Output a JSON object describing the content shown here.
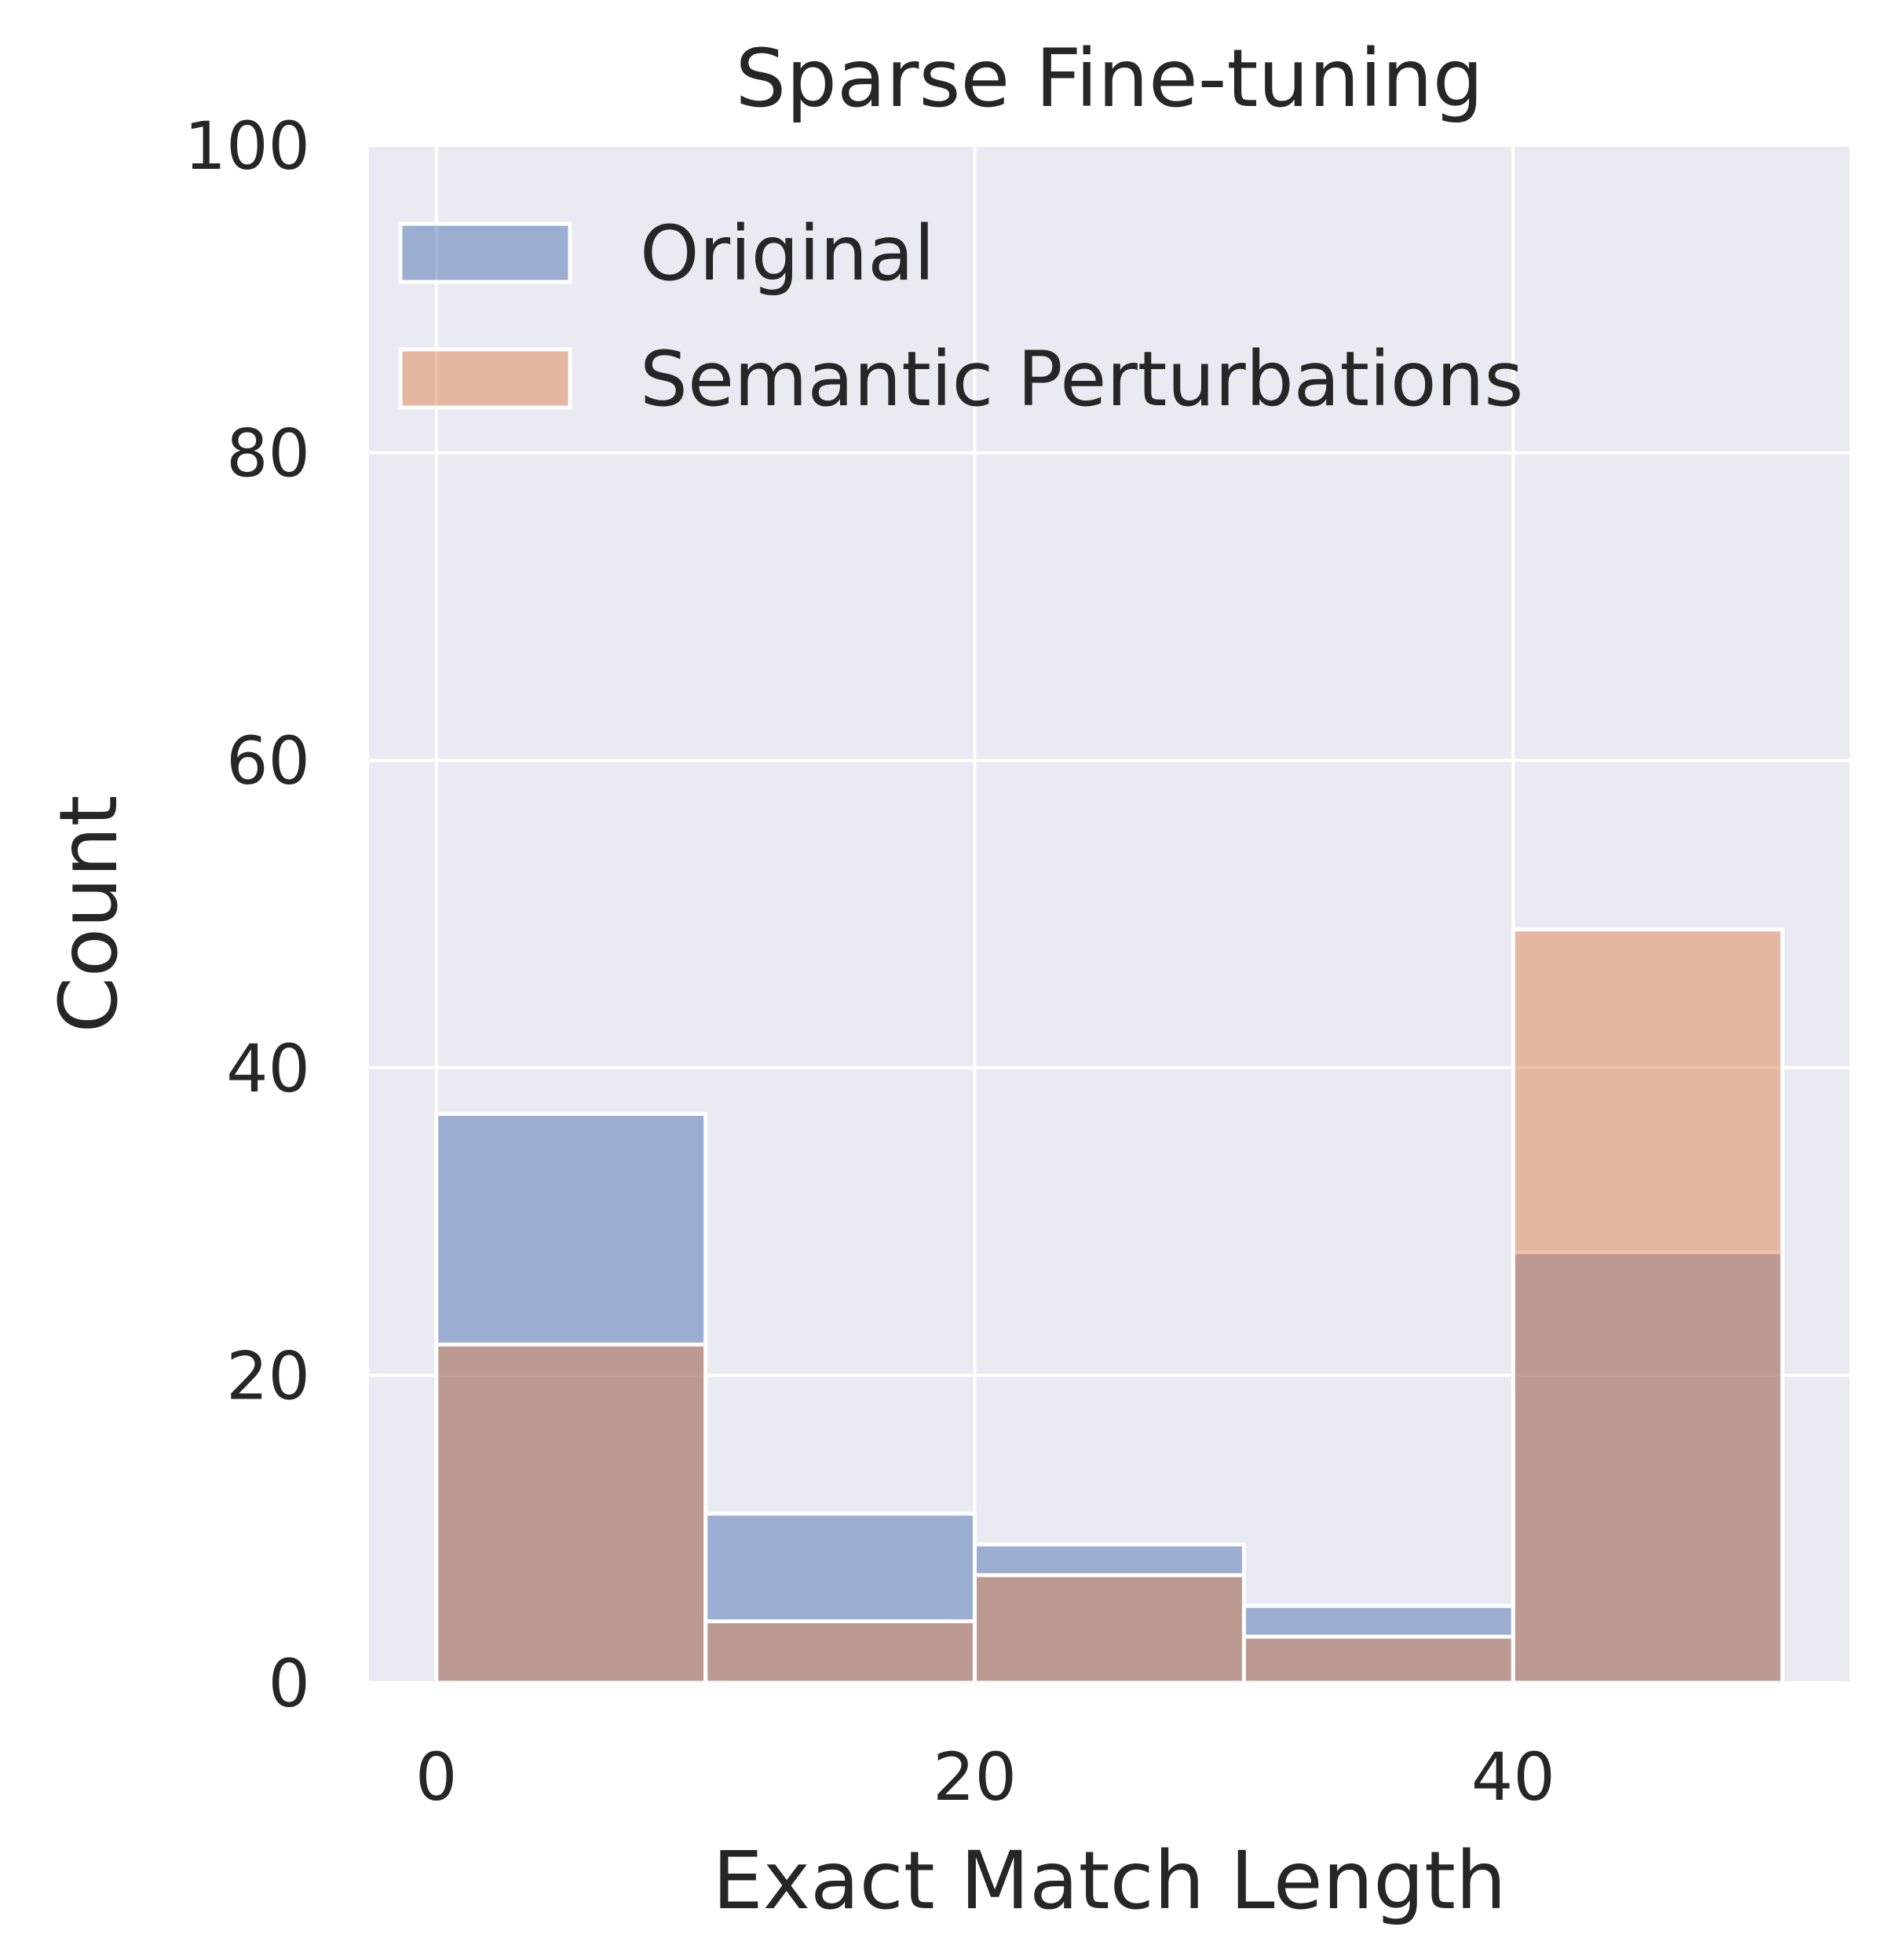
{
  "chart_data": {
    "type": "bar",
    "title": "Sparse Fine-tuning",
    "xlabel": "Exact Match Length",
    "ylabel": "Count",
    "xlim": [
      -2.5,
      52.5
    ],
    "ylim": [
      0,
      100
    ],
    "xticks": [
      0,
      20,
      40
    ],
    "yticks": [
      0,
      20,
      40,
      60,
      80,
      100
    ],
    "bin_edges": [
      0,
      10,
      20,
      30,
      40,
      50
    ],
    "grid": true,
    "legend_position": "top-left",
    "series": [
      {
        "name": "Original",
        "color": "#4C72B0",
        "alpha": 0.5,
        "values": [
          37,
          11,
          9,
          5,
          28
        ]
      },
      {
        "name": "Semantic Perturbations",
        "color": "#DD8452",
        "alpha": 0.5,
        "values": [
          22,
          4,
          7,
          3,
          49
        ]
      }
    ]
  }
}
